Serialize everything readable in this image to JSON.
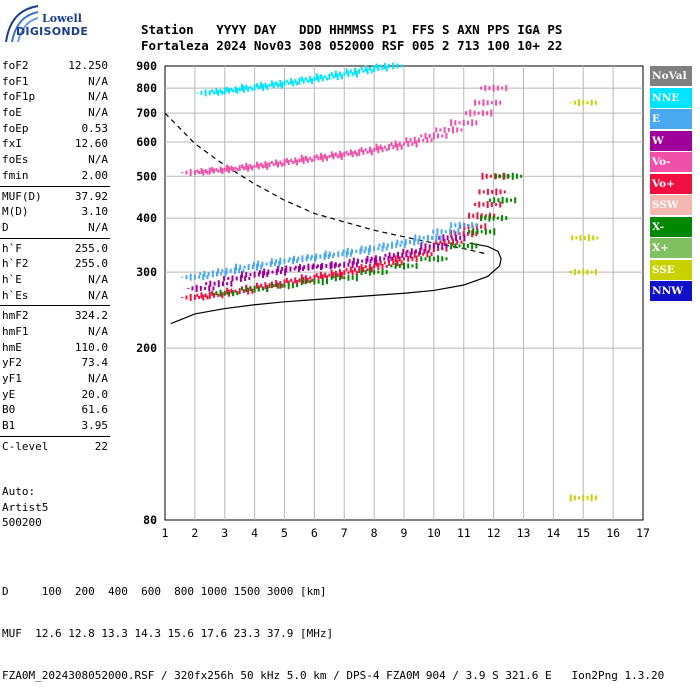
{
  "logo": {
    "line1": "Lowell",
    "line2": "DIGISONDE"
  },
  "header": {
    "line1": "Station   YYYY DAY   DDD HHMMSS P1  FFS S AXN PPS IGA PS",
    "line2": "Fortaleza 2024 Nov03 308 052000 RSF 005 2 713 100 10+ 22"
  },
  "params": {
    "group1": [
      {
        "label": "foF2",
        "value": "12.250"
      },
      {
        "label": "foF1",
        "value": "N/A"
      },
      {
        "label": "foF1p",
        "value": "N/A"
      },
      {
        "label": "foE",
        "value": "N/A"
      },
      {
        "label": "foEp",
        "value": "0.53"
      },
      {
        "label": "fxI",
        "value": "12.60"
      },
      {
        "label": "foEs",
        "value": "N/A"
      },
      {
        "label": "fmin",
        "value": "2.00"
      }
    ],
    "group2": [
      {
        "label": "MUF(D)",
        "value": "37.92"
      },
      {
        "label": "M(D)",
        "value": "3.10"
      },
      {
        "label": "D",
        "value": "N/A"
      }
    ],
    "group3": [
      {
        "label": "h`F",
        "value": "255.0"
      },
      {
        "label": "h`F2",
        "value": "255.0"
      },
      {
        "label": "h`E",
        "value": "N/A"
      },
      {
        "label": "h`Es",
        "value": "N/A"
      }
    ],
    "group4": [
      {
        "label": "hmF2",
        "value": "324.2"
      },
      {
        "label": "hmF1",
        "value": "N/A"
      },
      {
        "label": "hmE",
        "value": "110.0"
      },
      {
        "label": "yF2",
        "value": "73.4"
      },
      {
        "label": "yF1",
        "value": "N/A"
      },
      {
        "label": "yE",
        "value": "20.0"
      },
      {
        "label": "B0",
        "value": "61.6"
      },
      {
        "label": "B1",
        "value": "3.95"
      }
    ],
    "group5": [
      {
        "label": "C-level",
        "value": "22"
      }
    ]
  },
  "auto": {
    "line1": "Auto:",
    "line2": "Artist5",
    "line3": "500200"
  },
  "legend": [
    {
      "label": "NoVal",
      "color": "#808080"
    },
    {
      "label": "NNE",
      "color": "#00e5ff"
    },
    {
      "label": "E",
      "color": "#4aa8f0"
    },
    {
      "label": "W",
      "color": "#a0009a"
    },
    {
      "label": "Vo-",
      "color": "#f050a8"
    },
    {
      "label": "Vo+",
      "color": "#f01040"
    },
    {
      "label": "SSW",
      "color": "#f4b8b0"
    },
    {
      "label": "X-",
      "color": "#008800"
    },
    {
      "label": "X+",
      "color": "#80c060"
    },
    {
      "label": "SSE",
      "color": "#c8d200"
    },
    {
      "label": "NNW",
      "color": "#1010c8"
    }
  ],
  "footer": {
    "line1": "D     100  200  400  600  800 1000 1500 3000 [km]",
    "line2": "MUF  12.6 12.8 13.3 14.3 15.6 17.6 23.3 37.9 [MHz]",
    "line3": "FZA0M_2024308052000.RSF / 320fx256h 50 kHz 5.0 km / DPS-4 FZA0M 904 / 3.9 S 321.6 E   Ion2Png 1.3.20"
  },
  "chart_data": {
    "type": "scatter",
    "title": "",
    "xlabel": "",
    "ylabel": "",
    "xlim": [
      1,
      17
    ],
    "ylim": [
      80,
      900
    ],
    "y_scale": "log",
    "x_ticks": [
      "1",
      "2",
      "3",
      "4",
      "5",
      "6",
      "7",
      "8",
      "9",
      "10",
      "11",
      "12",
      "13",
      "14",
      "15",
      "16",
      "17"
    ],
    "y_ticks": [
      "80",
      "200",
      "300",
      "400",
      "500",
      "600",
      "700",
      "800",
      "900"
    ],
    "grid": true,
    "legend_position": "right",
    "series": [
      {
        "name": "Vo+",
        "color": "#f01040",
        "x": [
          2.0,
          2.5,
          3.0,
          3.5,
          4.0,
          4.5,
          5.0,
          5.5,
          6.0,
          6.5,
          7.0,
          7.5,
          8.0,
          8.5,
          9.0,
          9.5,
          10.0,
          10.5,
          11.0,
          11.3,
          11.6,
          11.8,
          11.95,
          12.05
        ],
        "y": [
          262,
          265,
          268,
          271,
          275,
          279,
          283,
          287,
          291,
          295,
          299,
          304,
          309,
          315,
          322,
          330,
          340,
          352,
          368,
          382,
          405,
          430,
          460,
          500
        ]
      },
      {
        "name": "W",
        "color": "#a0009a",
        "x": [
          2.2,
          2.8,
          3.4,
          4.0,
          4.6,
          5.2,
          5.8,
          6.4,
          7.0,
          7.6,
          8.2,
          8.8,
          9.4,
          10.0,
          10.6
        ],
        "y": [
          275,
          282,
          290,
          296,
          300,
          305,
          308,
          310,
          312,
          318,
          322,
          328,
          335,
          345,
          360
        ]
      },
      {
        "name": "E",
        "color": "#4aa8f0",
        "x": [
          2.0,
          2.6,
          3.2,
          3.8,
          4.4,
          5.0,
          5.6,
          6.2,
          6.8,
          7.4,
          8.0,
          8.6,
          9.2,
          9.8,
          10.4,
          11.0
        ],
        "y": [
          292,
          297,
          302,
          308,
          313,
          318,
          322,
          326,
          330,
          335,
          340,
          346,
          352,
          360,
          372,
          385
        ]
      },
      {
        "name": "X-",
        "color": "#008800",
        "x": [
          3.0,
          4.0,
          5.0,
          6.0,
          7.0,
          8.0,
          9.0,
          10.0,
          11.0,
          11.6,
          12.0,
          12.3,
          12.5
        ],
        "y": [
          268,
          274,
          279,
          285,
          291,
          300,
          310,
          322,
          345,
          372,
          400,
          440,
          500
        ]
      },
      {
        "name": "Vo-",
        "color": "#f050a8",
        "x": [
          2.0,
          2.5,
          3.0,
          3.5,
          4.0,
          4.5,
          5.0,
          5.5,
          6.0,
          6.5,
          7.0,
          7.5,
          8.0,
          8.5,
          9.0,
          9.5,
          10.0,
          10.5,
          11.0,
          11.5,
          11.8,
          12.0
        ],
        "y": [
          510,
          514,
          518,
          522,
          527,
          532,
          538,
          544,
          550,
          556,
          562,
          568,
          576,
          584,
          594,
          606,
          620,
          640,
          665,
          700,
          740,
          800
        ]
      },
      {
        "name": "NNE",
        "color": "#00e5ff",
        "x": [
          2.5,
          3.0,
          3.5,
          4.0,
          4.5,
          5.0,
          5.5,
          6.0,
          6.5,
          7.0,
          7.5,
          8.0,
          8.5
        ],
        "y": [
          780,
          788,
          795,
          803,
          812,
          820,
          830,
          840,
          850,
          862,
          875,
          888,
          900
        ]
      },
      {
        "name": "SSE",
        "color": "#c8d200",
        "x": [
          15.0,
          15.0,
          15.05,
          15.0
        ],
        "y": [
          740,
          300,
          360,
          90
        ]
      }
    ],
    "model_curves": [
      {
        "name": "model-profile",
        "style": "solid",
        "x": [
          1.2,
          2.0,
          3.0,
          4.0,
          5.0,
          6.0,
          7.0,
          8.0,
          9.0,
          10.0,
          11.0,
          11.8,
          12.2,
          12.25,
          12.15,
          11.8,
          11.2
        ],
        "y": [
          228,
          240,
          247,
          252,
          256,
          259,
          262,
          265,
          268,
          272,
          280,
          293,
          310,
          322,
          335,
          344,
          350
        ]
      },
      {
        "name": "muf-curve",
        "style": "dashed",
        "x": [
          1.0,
          2.0,
          3.0,
          4.0,
          5.0,
          6.0,
          7.0,
          8.0,
          9.0,
          10.0,
          11.0,
          11.8
        ],
        "y": [
          700,
          595,
          530,
          480,
          440,
          410,
          392,
          375,
          362,
          350,
          340,
          330
        ]
      }
    ]
  }
}
